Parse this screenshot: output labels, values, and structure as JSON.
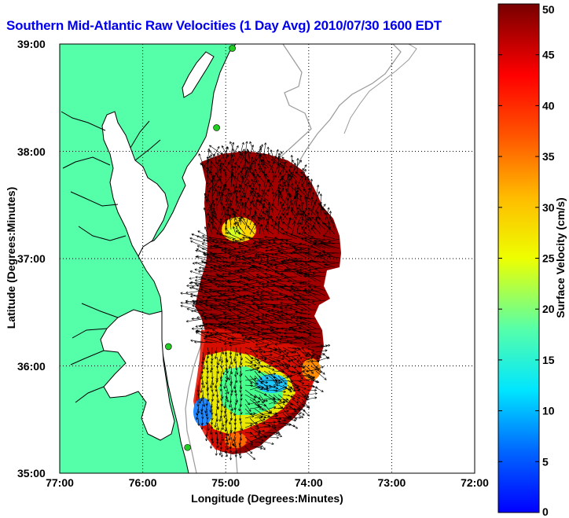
{
  "title": "Southern Mid-Atlantic Raw Velocities (1 Day Avg) 2010/07/30 1600 EDT",
  "xlabel": "Longitude (Degrees:Minutes)",
  "ylabel": "Latitude (Degrees:Minutes)",
  "colorbar": {
    "label": "Surface Velocity (cm/s)",
    "range": [
      0,
      50
    ],
    "ticks": [
      "0",
      "5",
      "10",
      "15",
      "20",
      "25",
      "30",
      "35",
      "40",
      "45",
      "50"
    ]
  },
  "axes": {
    "lon_range": [
      -77,
      -72
    ],
    "lat_range": [
      35,
      39
    ],
    "x_ticks": [
      "77:00",
      "76:00",
      "75:00",
      "74:00",
      "73:00",
      "72:00"
    ],
    "y_ticks": [
      "39:00",
      "38:00",
      "37:00",
      "36:00",
      "35:00"
    ],
    "grid": "dotted"
  },
  "colors": {
    "land": "#55ffaa",
    "water": "#ffffff",
    "coastline": "#000000",
    "bathymetry": "#999999",
    "title": "#0000ee",
    "arrows": "#000000",
    "stations": "#22cc22"
  },
  "stations": [
    {
      "lon": -74.92,
      "lat": 38.96
    },
    {
      "lon": -75.11,
      "lat": 38.22
    },
    {
      "lon": -75.69,
      "lat": 36.18
    },
    {
      "lon": -75.46,
      "lat": 35.24
    }
  ]
}
